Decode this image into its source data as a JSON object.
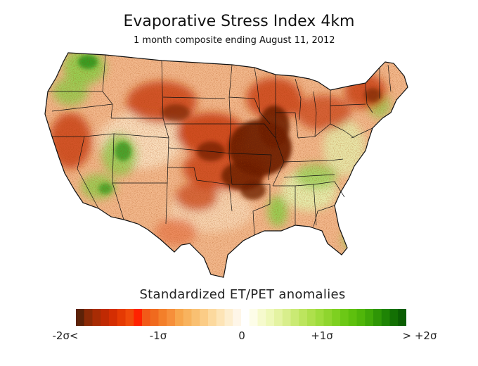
{
  "title": "Evaporative Stress Index 4km",
  "subtitle": "1 month composite ending August 11, 2012",
  "legend": {
    "title": "Standardized  ET/PET anomalies",
    "ticks": [
      "-2σ<",
      "-1σ",
      "0",
      "+1σ",
      "> +2σ"
    ],
    "colors": [
      "#5c2208",
      "#8b2a06",
      "#a82c04",
      "#c02a03",
      "#d42e02",
      "#e53a03",
      "#f04a0a",
      "#ff2200",
      "#f25a18",
      "#f06a1e",
      "#f37f2a",
      "#f68f3a",
      "#f7a64c",
      "#f8b35e",
      "#f9c072",
      "#fbcc86",
      "#fcd99e",
      "#fde4b6",
      "#fdeecf",
      "#fef6e8",
      "#ffffff",
      "#fdfde8",
      "#f6facd",
      "#eef8b8",
      "#e4f3a2",
      "#d8ee8c",
      "#caea74",
      "#bce55e",
      "#aee04c",
      "#9edc3c",
      "#8fd52e",
      "#7ed020",
      "#6cc816",
      "#5ec00e",
      "#50b60a",
      "#40a808",
      "#2f9606",
      "#1f8405",
      "#137004",
      "#0b5e03"
    ],
    "colors_count_note": null
  },
  "map": {
    "region": "Contiguous United States",
    "palette": {
      "very_dry": "#6b1f05",
      "dry": "#c93b0d",
      "moderately_dry": "#e8764a",
      "slightly_dry": "#f3b98d",
      "neutral": "#fbe7c9",
      "slightly_wet": "#e6f3b0",
      "wet": "#8fd04e",
      "very_wet": "#2f9a1e"
    }
  }
}
